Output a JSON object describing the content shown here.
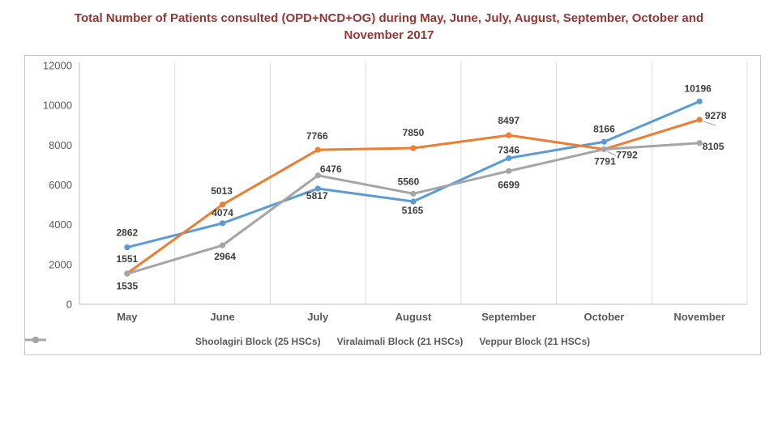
{
  "page": {
    "background": "#FFFFFF"
  },
  "title": {
    "text": "Total Number of Patients consulted (OPD+NCD+OG) during  May, June, July, August, September, October and November 2017",
    "color": "#943634"
  },
  "chart_data": {
    "type": "line",
    "title": "Total Number of Patients consulted (OPD+NCD+OG) during May, June, July, August, September, October and November 2017",
    "categories": [
      "May",
      "June",
      "July",
      "August",
      "September",
      "October",
      "November"
    ],
    "series": [
      {
        "name": "Shoolagiri Block (25 HSCs)",
        "color": "#5B9BD5",
        "values": [
          2862,
          4074,
          5817,
          5165,
          7346,
          8166,
          10196
        ]
      },
      {
        "name": "Viralaimali Block (21 HSCs)",
        "color": "#ED7D31",
        "values": [
          1551,
          5013,
          7766,
          7850,
          8497,
          7792,
          9278
        ]
      },
      {
        "name": "Veppur Block (21 HSCs)",
        "color": "#A5A5A5",
        "values": [
          1535,
          2964,
          6476,
          5560,
          6699,
          7791,
          8105
        ]
      }
    ],
    "xlabel": "",
    "ylabel": "",
    "ylim": [
      0,
      12000
    ],
    "yticks": [
      0,
      2000,
      4000,
      6000,
      8000,
      10000,
      12000
    ],
    "grid": "vertical-only",
    "legend_position": "bottom",
    "data_labels": true,
    "label_offsets": [
      [
        [
          0,
          -18
        ],
        [
          0,
          -13
        ],
        [
          -1,
          9
        ],
        [
          -1,
          11
        ],
        [
          0,
          -10
        ],
        [
          0,
          -16
        ],
        [
          -2,
          -16
        ]
      ],
      [
        [
          0,
          -18
        ],
        [
          -1,
          -17
        ],
        [
          -1,
          -17
        ],
        [
          0,
          -19
        ],
        [
          0,
          -18
        ],
        [
          28,
          7
        ],
        [
          20,
          -5
        ]
      ],
      [
        [
          0,
          15
        ],
        [
          3,
          14
        ],
        [
          16,
          -8
        ],
        [
          -6,
          -15
        ],
        [
          0,
          17
        ],
        [
          1,
          15
        ],
        [
          17,
          4
        ]
      ]
    ],
    "leader_lines": [
      [
        718,
        118,
        729,
        123
      ],
      [
        837,
        81,
        852,
        86
      ]
    ],
    "style": {
      "axis_label_color": "#595959",
      "data_label_color": "#3F3F3F",
      "gridline_color": "#D9D9D9",
      "axis_line_color": "#BFBFBF",
      "leader_color": "#A6A6A6"
    }
  }
}
